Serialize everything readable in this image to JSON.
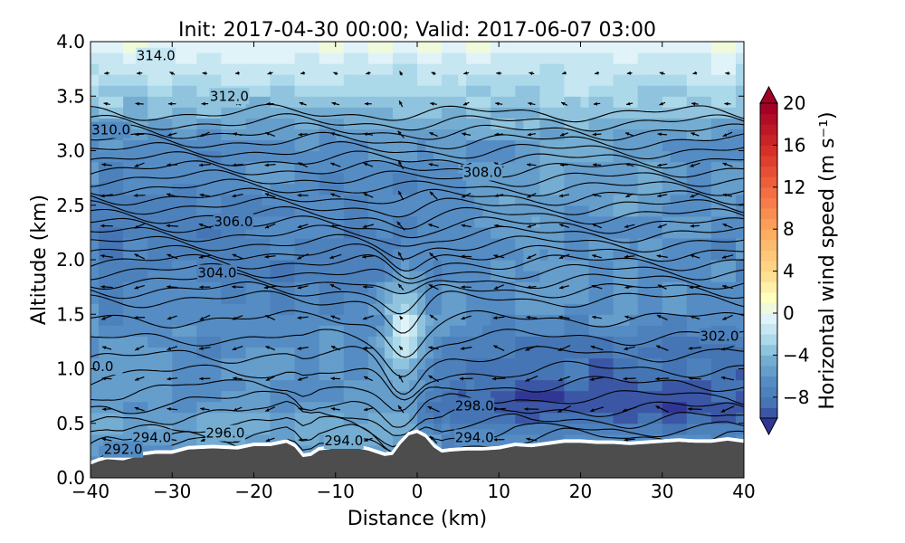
{
  "chart_data": {
    "type": "heatmap",
    "title": "Init: 2017-04-30 00:00; Valid: 2017-06-07 03:00",
    "xlabel": "Distance (km)",
    "ylabel": "Altitude (km)",
    "xlim": [
      -40,
      40
    ],
    "ylim": [
      0.0,
      4.0
    ],
    "x_ticks": [
      -40,
      -30,
      -20,
      -10,
      0,
      10,
      20,
      30,
      40
    ],
    "y_ticks": [
      "0.0",
      "0.5",
      "1.0",
      "1.5",
      "2.0",
      "2.5",
      "3.0",
      "3.5",
      "4.0"
    ],
    "colorbar": {
      "label": "Horizontal wind speed (m s⁻¹)",
      "range": [
        -10,
        20
      ],
      "tick_values": [
        -8,
        -4,
        0,
        4,
        8,
        12,
        16,
        20
      ],
      "tick_labels": [
        "−8",
        "−4",
        "0",
        "4",
        "8",
        "12",
        "16",
        "20"
      ],
      "colormap": "RdYlBu_r",
      "extend": "both"
    },
    "contour_labels": [
      {
        "text": "314.0",
        "x": -32,
        "y": 3.87
      },
      {
        "text": "312.0",
        "x": -23,
        "y": 3.5
      },
      {
        "text": "310.0",
        "x": -37.5,
        "y": 3.19
      },
      {
        "text": "308.0",
        "x": 8,
        "y": 2.8
      },
      {
        "text": "306.0",
        "x": -22.5,
        "y": 2.35
      },
      {
        "text": "304.0",
        "x": -24.5,
        "y": 1.88
      },
      {
        "text": "302.0",
        "x": 37,
        "y": 1.3
      },
      {
        "text": "0.0",
        "x": -38.5,
        "y": 1.02
      },
      {
        "text": "298.0",
        "x": 7,
        "y": 0.66
      },
      {
        "text": "296.0",
        "x": -23.5,
        "y": 0.41
      },
      {
        "text": "294.0",
        "x": -32.5,
        "y": 0.37
      },
      {
        "text": "294.0",
        "x": -9,
        "y": 0.34
      },
      {
        "text": "294.0",
        "x": 7,
        "y": 0.37
      },
      {
        "text": "292.0",
        "x": -36,
        "y": 0.26
      }
    ],
    "terrain": {
      "x": [
        -40,
        -39,
        -38,
        -36,
        -34,
        -32,
        -30,
        -28,
        -25,
        -22,
        -20,
        -18,
        -16,
        -15,
        -14,
        -13,
        -12,
        -10,
        -8,
        -6,
        -4,
        -3,
        -2,
        -1,
        0,
        1,
        2,
        3,
        4,
        6,
        8,
        10,
        12,
        14,
        16,
        18,
        20,
        22,
        24,
        26,
        28,
        30,
        32,
        34,
        36,
        38,
        40
      ],
      "y": [
        0.12,
        0.15,
        0.17,
        0.16,
        0.2,
        0.22,
        0.22,
        0.26,
        0.27,
        0.26,
        0.29,
        0.29,
        0.32,
        0.28,
        0.19,
        0.2,
        0.25,
        0.27,
        0.28,
        0.25,
        0.2,
        0.21,
        0.31,
        0.39,
        0.41,
        0.37,
        0.28,
        0.23,
        0.24,
        0.25,
        0.25,
        0.26,
        0.29,
        0.28,
        0.3,
        0.32,
        0.32,
        0.31,
        0.31,
        0.3,
        0.31,
        0.32,
        0.33,
        0.32,
        0.32,
        0.34,
        0.32
      ]
    },
    "isentrope_levels": [
      292,
      293,
      294,
      295,
      296,
      297,
      298,
      299,
      300,
      301,
      302,
      302.6,
      303.2,
      303.8,
      304.4,
      305,
      305.6,
      306.2,
      306.8,
      307.4,
      308,
      308.6,
      309.2,
      309.8,
      310.4,
      311,
      311.6,
      312.2,
      312.8,
      313.4,
      314
    ],
    "wind_arrow_spacing_km": {
      "dx": 4,
      "dz": 0.28
    }
  }
}
